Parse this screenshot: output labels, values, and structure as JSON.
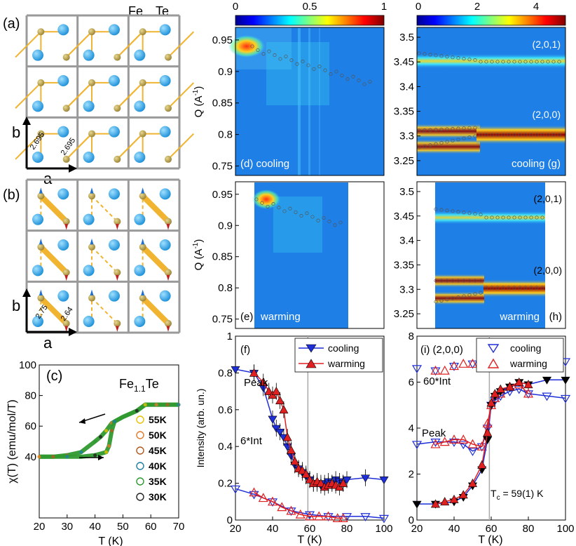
{
  "colors": {
    "gray_grid": "#9a9a9a",
    "gold_atom": "#b39b4a",
    "blue_atom": "#2a9fe0",
    "bond": "#f0b430",
    "cooling": "#1f2fd8",
    "warming": "#e02020",
    "hm_bg": "#1e7fe6",
    "legend_yellow": "#e8c200",
    "legend_orange": "#e07a2a",
    "legend_brown": "#b05a20",
    "legend_teal": "#1f7fa0",
    "legend_green": "#2f9a2f",
    "legend_black": "#222222"
  },
  "panel_a": {
    "label": "(a)",
    "fe": "Fe",
    "te": "Te",
    "axis_a": "a",
    "axis_b": "b",
    "bond1": "2.695",
    "bond2": "2.695"
  },
  "panel_b": {
    "label": "(b)",
    "axis_a": "a",
    "axis_b": "b",
    "bond1": "2.75",
    "bond2": "2.64"
  },
  "panel_c": {
    "label": "(c)",
    "compound": "Fe",
    "compound_sub": "1.1",
    "compound_end": "Te",
    "ylabel": "χ(T) (emu/mol/T)",
    "xlabel": "T (K)",
    "xticks": [
      "20",
      "30",
      "40",
      "50",
      "60",
      "70"
    ],
    "yticks": [
      "40",
      "60",
      "80",
      "100"
    ],
    "legend": [
      "55K",
      "50K",
      "45K",
      "40K",
      "35K",
      "30K"
    ]
  },
  "colorbar_left": {
    "ticks": [
      "0",
      "0.5",
      "1"
    ]
  },
  "colorbar_right": {
    "ticks": [
      "0",
      "2",
      "4"
    ]
  },
  "panel_d": {
    "label": "(d) cooling",
    "yticks": [
      "0.95",
      "0.9",
      "0.85",
      "0.8",
      "0.75"
    ],
    "ylabel": "Q (A",
    "ylabel_sup": "-1",
    "ylabel_end": ")"
  },
  "panel_e": {
    "label": "(e)",
    "mode": "warming",
    "yticks": [
      "0.95",
      "0.9",
      "0.85",
      "0.8",
      "0.75"
    ],
    "ylabel": "Q (A",
    "ylabel_sup": "-1",
    "ylabel_end": ")"
  },
  "panel_g": {
    "label": "cooling (g)",
    "peak1": "(2,0,1)",
    "peak2": "(2,0,0)",
    "yticks": [
      "3.5",
      "3.45",
      "3.4",
      "3.35",
      "3.3",
      "3.25"
    ]
  },
  "panel_h": {
    "label": "(h)",
    "mode": "warming",
    "peak1": "(2,0,1)",
    "peak2": "(2,0,0)",
    "yticks": [
      "3.5",
      "3.45",
      "3.4",
      "3.35",
      "3.3",
      "3.25"
    ]
  },
  "panel_f": {
    "label": "(f)",
    "ylabel": "Intensity (arb. un.)",
    "xlabel": "T (K)",
    "xticks": [
      "20",
      "40",
      "60",
      "80",
      "100"
    ],
    "yticks": [
      "0",
      "0.2",
      "0.4",
      "0.6",
      "0.8",
      "1"
    ],
    "legend_cooling": "cooling",
    "legend_warming": "warming",
    "ann_peak": "Peak",
    "ann_int": "6*Int"
  },
  "panel_i": {
    "label": "(i) (2,0,0)",
    "xlabel": "T (K)",
    "xticks": [
      "20",
      "40",
      "60",
      "80",
      "100"
    ],
    "yticks": [
      "0",
      "2",
      "4",
      "6",
      "8"
    ],
    "legend_cooling": "cooling",
    "legend_warming": "warming",
    "ann_int": "60*Int",
    "ann_peak": "Peak",
    "tc": "T",
    "tc_sub": "c",
    "tc_end": " = 59(1) K"
  },
  "chart_data": [
    {
      "type": "line",
      "panel": "c",
      "xlabel": "T (K)",
      "ylabel": "χ(T) (emu/mol/T)",
      "xlim": [
        20,
        70
      ],
      "ylim": [
        0,
        100
      ],
      "series": [
        {
          "name": "cooling",
          "x": [
            20,
            25,
            30,
            35,
            40,
            42,
            44,
            46,
            50,
            55,
            58,
            62,
            66,
            70
          ],
          "y": [
            40,
            40,
            41,
            43,
            50,
            53,
            57,
            62,
            66,
            70,
            74,
            74,
            74,
            74
          ]
        },
        {
          "name": "warming",
          "x": [
            20,
            25,
            30,
            35,
            40,
            44,
            45,
            46,
            47,
            50,
            55,
            58,
            62,
            66,
            70
          ],
          "y": [
            40,
            40,
            40,
            40,
            41,
            43,
            47,
            57,
            63,
            66,
            70,
            74,
            74,
            74,
            74
          ]
        }
      ]
    },
    {
      "type": "line",
      "panel": "f",
      "xlabel": "T (K)",
      "ylabel": "Intensity (arb. un.)",
      "xlim": [
        20,
        100
      ],
      "ylim": [
        0,
        1
      ],
      "series": [
        {
          "name": "cooling",
          "x": [
            20,
            30,
            35,
            40,
            42,
            44,
            46,
            48,
            50,
            52,
            54,
            56,
            58,
            60,
            62,
            64,
            66,
            68,
            70,
            72,
            74,
            76,
            78,
            80,
            90,
            100
          ],
          "y": [
            0.82,
            0.8,
            0.72,
            0.55,
            0.5,
            0.48,
            0.45,
            0.4,
            0.35,
            0.3,
            0.28,
            0.26,
            0.24,
            0.22,
            0.2,
            0.2,
            0.19,
            0.2,
            0.21,
            0.2,
            0.22,
            0.21,
            0.2,
            0.22,
            0.23,
            0.22
          ]
        },
        {
          "name": "warming",
          "x": [
            30,
            35,
            38,
            40,
            42,
            44,
            46,
            48,
            50,
            52,
            54,
            56,
            58,
            60,
            62,
            64,
            66,
            68,
            70,
            72,
            74,
            76,
            78
          ],
          "y": [
            0.8,
            0.75,
            0.7,
            0.68,
            0.7,
            0.65,
            0.6,
            0.45,
            0.38,
            0.32,
            0.28,
            0.27,
            0.25,
            0.22,
            0.2,
            0.21,
            0.2,
            0.18,
            0.19,
            0.2,
            0.19,
            0.18,
            0.2
          ]
        },
        {
          "name": "cooling",
          "x": [
            20,
            30,
            40,
            50,
            60,
            70,
            80,
            90,
            100
          ],
          "y": [
            0.17,
            0.14,
            0.1,
            0.05,
            0.03,
            0.02,
            0.02,
            0.02,
            0.01
          ]
        },
        {
          "name": "warming",
          "x": [
            30,
            35,
            40,
            45,
            50,
            55,
            60,
            65,
            70,
            75,
            78
          ],
          "y": [
            0.15,
            0.12,
            0.1,
            0.07,
            0.05,
            0.03,
            0.02,
            0.02,
            0.02,
            0.01,
            0.01
          ]
        }
      ]
    },
    {
      "type": "line",
      "panel": "i",
      "xlabel": "T (K)",
      "xlim": [
        20,
        100
      ],
      "ylim": [
        0,
        8
      ],
      "series": [
        {
          "name": "cooling",
          "x": [
            20,
            30,
            40,
            50,
            55,
            60,
            65,
            70,
            75,
            80,
            90,
            100
          ],
          "y": [
            6.6,
            6.5,
            6.7,
            6.8,
            6.8,
            6.9,
            7.0,
            7.0,
            7.0,
            7.0,
            6.9,
            6.9
          ]
        },
        {
          "name": "warming",
          "x": [
            30,
            35,
            40,
            45,
            50,
            55,
            60,
            65,
            70,
            75,
            80
          ],
          "y": [
            6.5,
            6.5,
            6.7,
            6.8,
            6.8,
            6.9,
            6.9,
            6.9,
            6.9,
            6.9,
            6.9
          ]
        },
        {
          "name": "cooling",
          "x": [
            20,
            30,
            40,
            45,
            50,
            55,
            58,
            60,
            62,
            65,
            70,
            75,
            80,
            90,
            100
          ],
          "y": [
            3.3,
            3.4,
            3.4,
            3.3,
            3.0,
            3.2,
            4.0,
            5.0,
            5.2,
            5.4,
            5.6,
            5.7,
            5.5,
            5.4,
            5.3
          ]
        },
        {
          "name": "warming",
          "x": [
            30,
            35,
            40,
            45,
            50,
            55,
            58,
            60,
            62,
            65,
            70,
            75,
            80
          ],
          "y": [
            3.3,
            3.4,
            3.5,
            3.5,
            3.3,
            3.2,
            4.2,
            5.0,
            5.3,
            5.5,
            5.8,
            5.9,
            5.5
          ]
        },
        {
          "name": "cooling",
          "x": [
            20,
            30,
            40,
            45,
            50,
            55,
            58,
            60,
            62,
            65,
            70,
            75,
            80,
            90,
            100
          ],
          "y": [
            0.7,
            0.7,
            0.8,
            1.0,
            1.5,
            2.2,
            3.5,
            5.0,
            5.4,
            5.6,
            5.8,
            6.0,
            5.9,
            6.1,
            6.1
          ]
        },
        {
          "name": "warming",
          "x": [
            30,
            35,
            40,
            45,
            50,
            55,
            58,
            60,
            62,
            65,
            70,
            75,
            80
          ],
          "y": [
            0.7,
            0.8,
            0.9,
            1.1,
            1.6,
            2.4,
            3.8,
            5.1,
            5.5,
            5.7,
            5.8,
            6.0,
            5.9
          ]
        }
      ]
    }
  ]
}
